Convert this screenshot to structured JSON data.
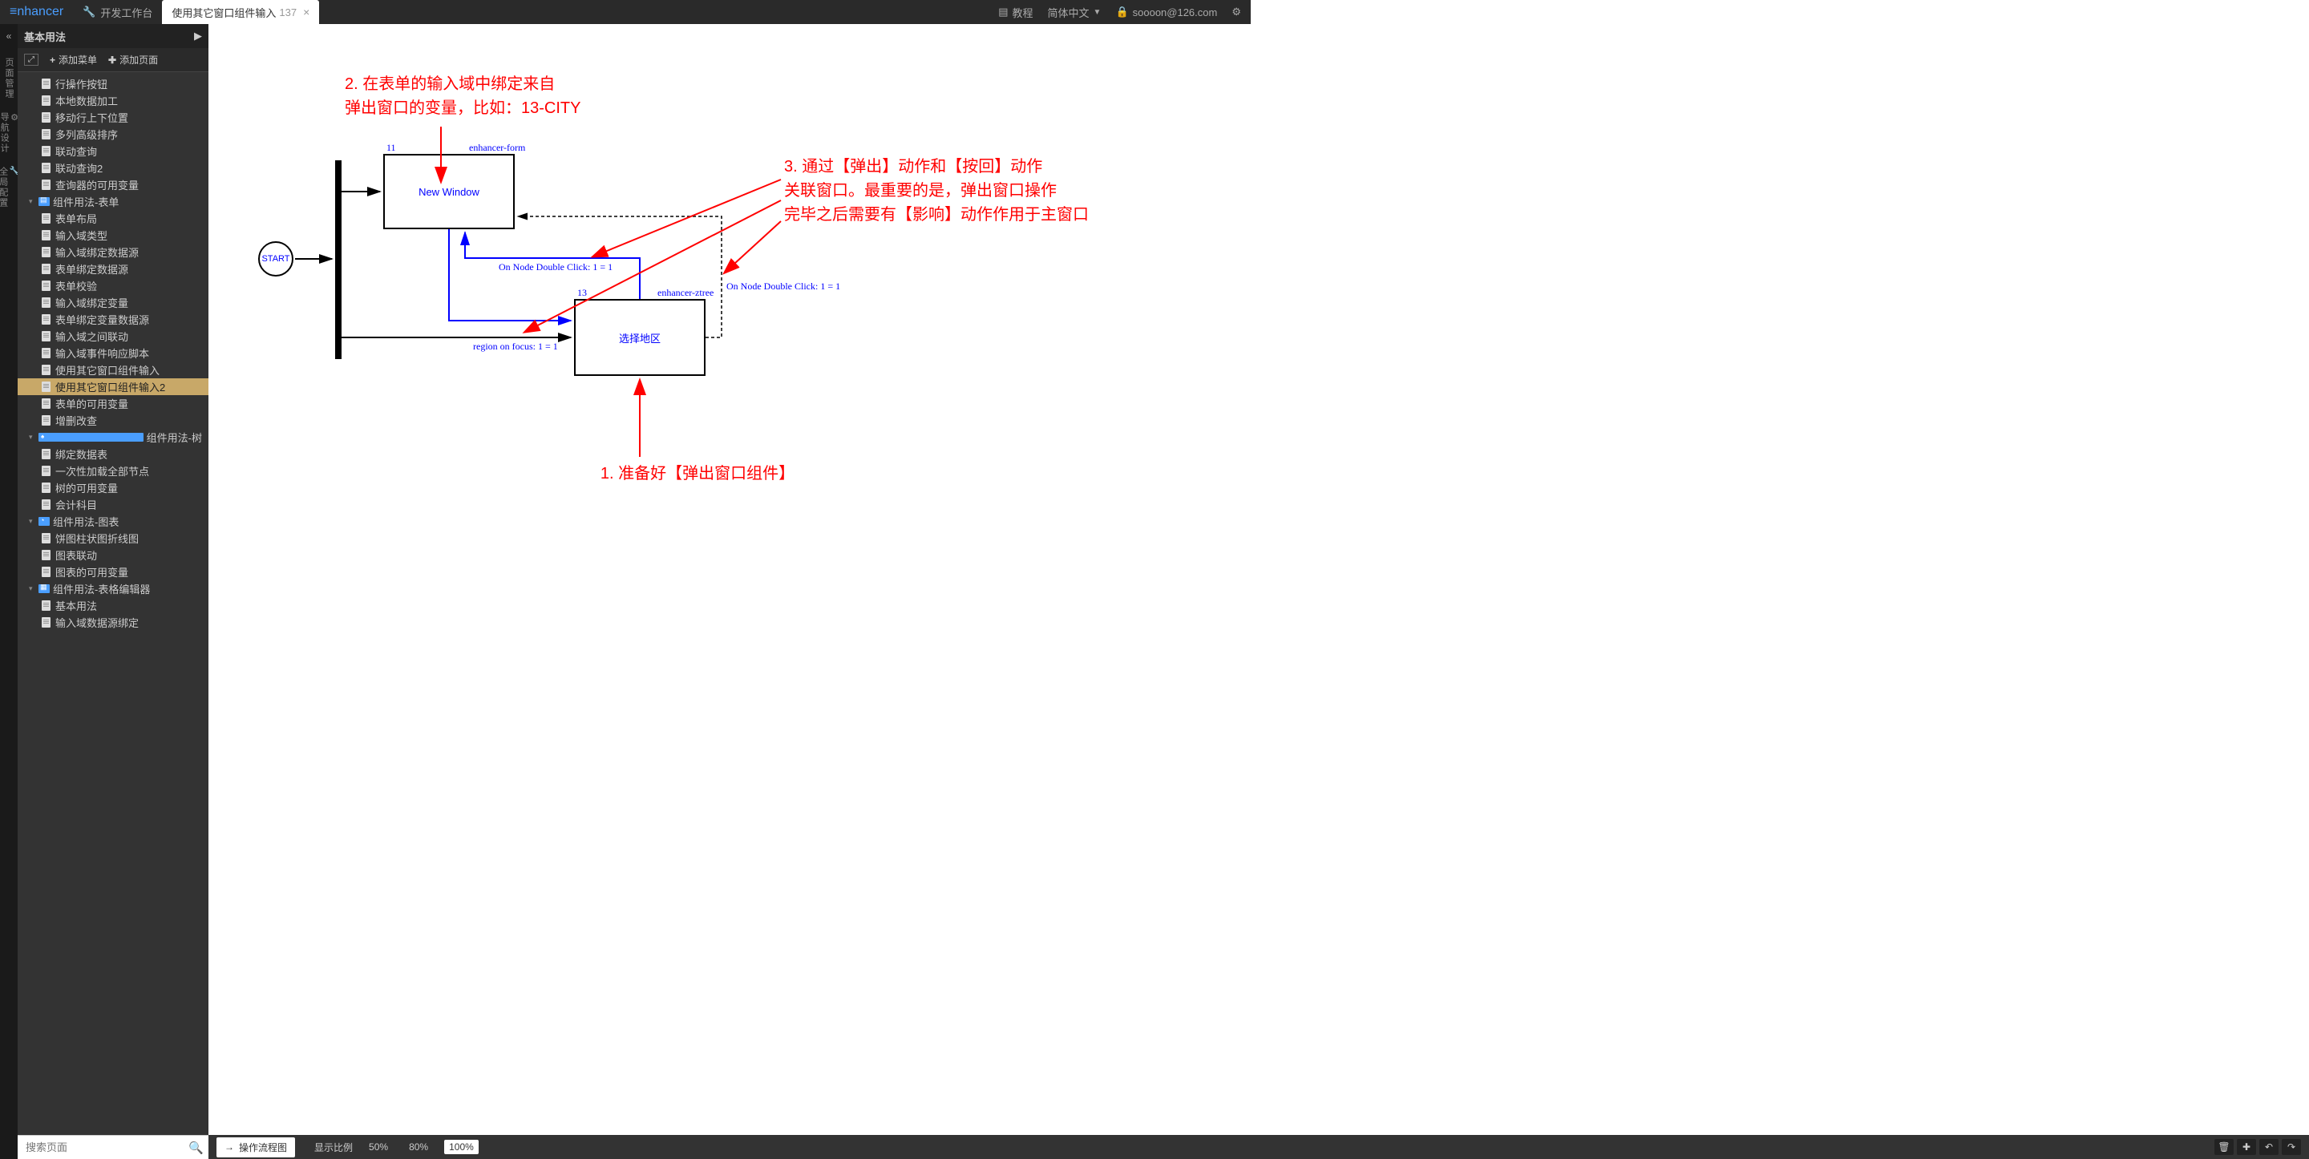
{
  "topbar": {
    "logo": "nhancer",
    "workbench": "开发工作台",
    "tab_title": "使用其它窗口组件输入",
    "tab_number": "137",
    "tutorial": "教程",
    "language": "简体中文",
    "user": "soooon@126.com"
  },
  "leftrail": {
    "labels": [
      "页面管理",
      "导航设计",
      "全局配置"
    ]
  },
  "sidebar": {
    "header": "基本用法",
    "add_menu": "添加菜单",
    "add_page": "添加页面",
    "items": [
      "行操作按钮",
      "本地数据加工",
      "移动行上下位置",
      "多列高级排序",
      "联动查询",
      "联动查询2",
      "查询器的可用变量"
    ],
    "group_form": "组件用法-表单",
    "form_items": [
      "表单布局",
      "输入域类型",
      "输入域绑定数据源",
      "表单绑定数据源",
      "表单校验",
      "输入域绑定变量",
      "表单绑定变量数据源",
      "输入域之间联动",
      "输入域事件响应脚本",
      "使用其它窗口组件输入",
      "使用其它窗口组件输入2",
      "表单的可用变量",
      "增删改查"
    ],
    "group_tree": "组件用法-树",
    "tree_items": [
      "绑定数据表",
      "一次性加载全部节点",
      "树的可用变量",
      "会计科目"
    ],
    "group_chart": "组件用法-图表",
    "chart_items": [
      "饼图柱状图折线图",
      "图表联动",
      "图表的可用变量"
    ],
    "group_grid": "组件用法-表格编辑器",
    "grid_items": [
      "基本用法",
      "输入域数据源绑定"
    ],
    "search_placeholder": "搜索页面",
    "selected_index": 10
  },
  "bottombar": {
    "flow": "操作流程图",
    "zoom_label": "显示比例",
    "zooms": [
      "50%",
      "80%",
      "100%"
    ],
    "active_zoom": 2
  },
  "diagram": {
    "annotation2_l1": "2. 在表单的输入域中绑定来自",
    "annotation2_l2": "弹出窗口的变量，比如：13-CITY",
    "annotation3_l1": "3. 通过【弹出】动作和【按回】动作",
    "annotation3_l2": "关联窗口。最重要的是，弹出窗口操作",
    "annotation3_l3": "完毕之后需要有【影响】动作作用于主窗口",
    "annotation1": "1. 准备好【弹出窗口组件】",
    "start": "START",
    "node11_id": "11",
    "node11_type": "enhancer-form",
    "node11_label": "New Window",
    "node13_id": "13",
    "node13_type": "enhancer-ztree",
    "node13_label": "选择地区",
    "edge_dbl_click": "On Node Double Click: 1 = 1",
    "edge_dbl_click2": "On Node Double Click: 1 = 1",
    "edge_region": "region on focus: 1 = 1",
    "colors": {
      "red": "#ff0000",
      "blue": "#0000ff",
      "black": "#000000"
    }
  }
}
